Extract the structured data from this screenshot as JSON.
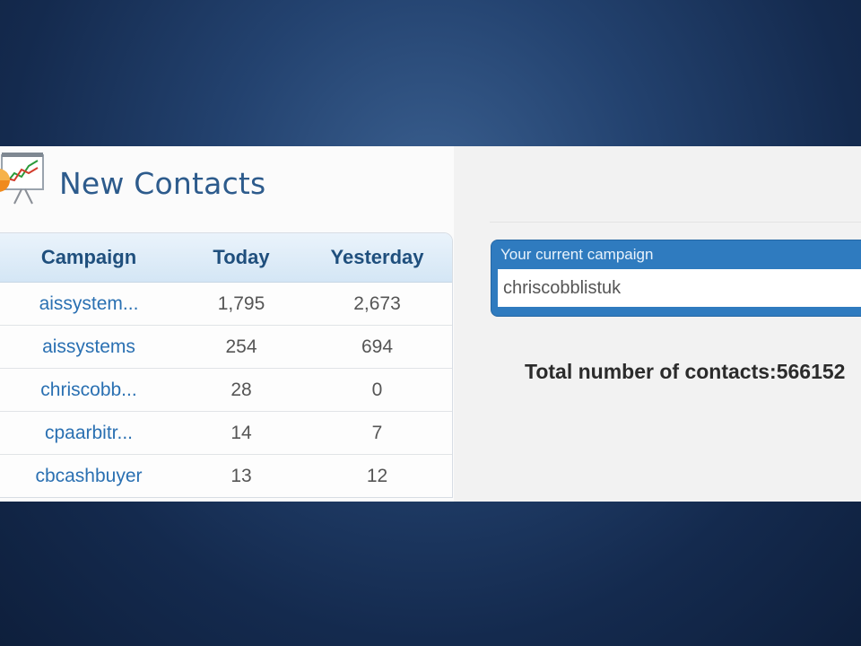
{
  "widget": {
    "title": "New Contacts",
    "icon": "chart-presentation-icon"
  },
  "table": {
    "headers": {
      "campaign": "Campaign",
      "today": "Today",
      "yesterday": "Yesterday"
    },
    "rows": [
      {
        "campaign": "aissystem...",
        "today": "1,795",
        "yesterday": "2,673"
      },
      {
        "campaign": "aissystems",
        "today": "254",
        "yesterday": "694"
      },
      {
        "campaign": "chriscobb...",
        "today": "28",
        "yesterday": "0"
      },
      {
        "campaign": "cpaarbitr...",
        "today": "14",
        "yesterday": "7"
      },
      {
        "campaign": "cbcashbuyer",
        "today": "13",
        "yesterday": "12"
      }
    ]
  },
  "current_campaign": {
    "label": "Your current campaign",
    "value": "chriscobblistuk"
  },
  "total_contacts": "Total number of contacts:566152",
  "colors": {
    "accent": "#2f7bbf",
    "title": "#2d5b8c",
    "link": "#2a70b2"
  }
}
